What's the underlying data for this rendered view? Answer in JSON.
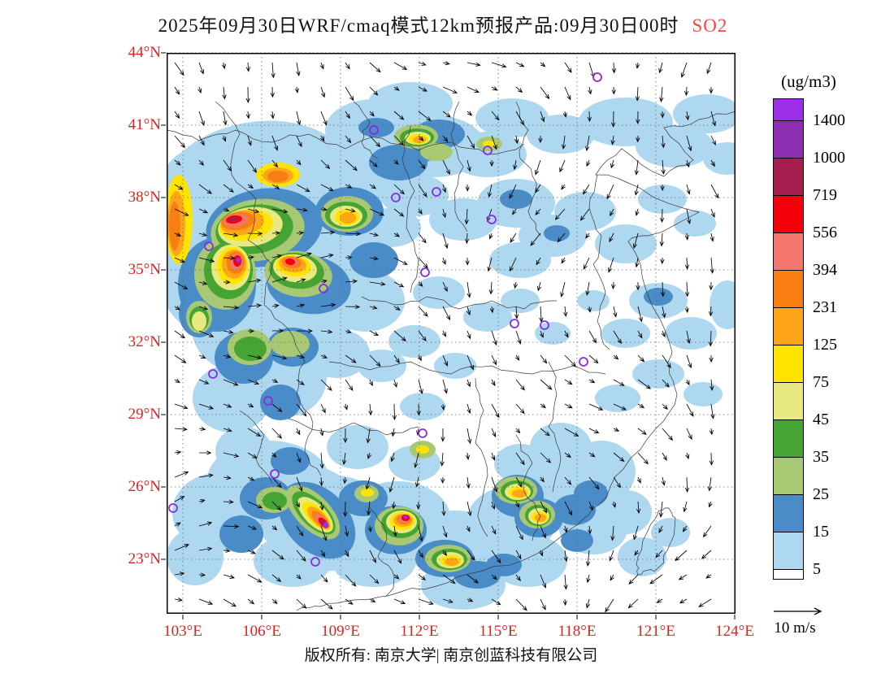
{
  "title": {
    "main": "2025年09月30日WRF/cmaq模式12km预报产品:09月30日00时",
    "species": "SO2"
  },
  "axes": {
    "lat": [
      "44°N",
      "41°N",
      "38°N",
      "35°N",
      "32°N",
      "29°N",
      "26°N",
      "23°N"
    ],
    "lon": [
      "103°E",
      "106°E",
      "109°E",
      "112°E",
      "115°E",
      "118°E",
      "121°E",
      "124°E"
    ]
  },
  "legend": {
    "unit": "(ug/m3)",
    "labels": [
      "1400",
      "1000",
      "719",
      "556",
      "394",
      "231",
      "125",
      "75",
      "45",
      "35",
      "25",
      "15",
      "5"
    ],
    "colors": [
      "#9d2ee8",
      "#8b2fb0",
      "#a61e50",
      "#f5000a",
      "#f5766e",
      "#f87e14",
      "#ffa519",
      "#ffe400",
      "#e9e982",
      "#46a432",
      "#a9c873",
      "#4a8cc8",
      "#aed7f0",
      "#ffffff"
    ]
  },
  "wind_reference": {
    "label": "10 m/s"
  },
  "footer": {
    "text": "版权所有: 南京大学| 南京创蓝科技有限公司"
  },
  "colors": {
    "axis_label_red": "#e02020",
    "species_red": "#f04646",
    "marker_purple": "#8a2be2"
  }
}
